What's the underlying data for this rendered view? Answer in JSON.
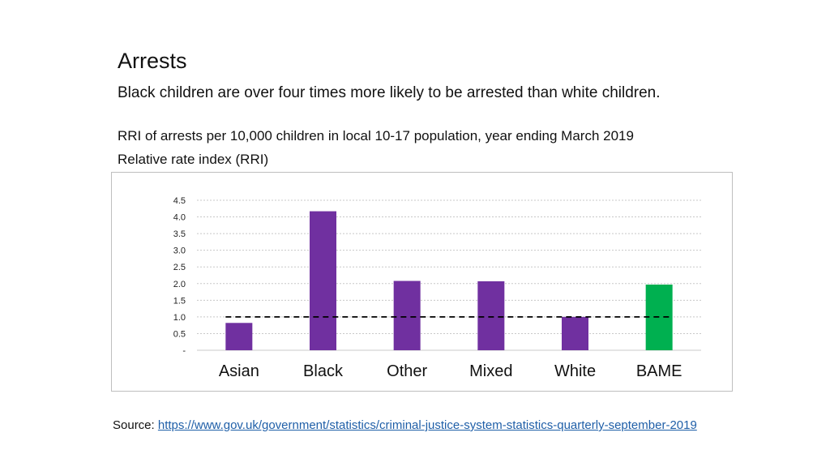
{
  "header": {
    "title": "Arrests",
    "subtitle": "Black children are over four times more likely to be arrested than white children."
  },
  "chart_caption": "RRI of arrests per 10,000 children in local 10-17 population, year ending March 2019",
  "chart_ylabel_caption": "Relative rate index (RRI)",
  "source": {
    "label": "Source: ",
    "link_text": "https://www.gov.uk/government/statistics/criminal-justice-system-statistics-quarterly-september-2019"
  },
  "chart_data": {
    "type": "bar",
    "categories": [
      "Asian",
      "Black",
      "Other",
      "Mixed",
      "White",
      "BAME"
    ],
    "values": [
      0.82,
      4.17,
      2.08,
      2.07,
      1.0,
      1.97
    ],
    "ylim": [
      0,
      4.5
    ],
    "y_ticks": [
      "-",
      "0.5",
      "1.0",
      "1.5",
      "2.0",
      "2.5",
      "3.0",
      "3.5",
      "4.0",
      "4.5"
    ],
    "reference_line": 1.0,
    "grid": true,
    "colors": {
      "bar": "#7030a0",
      "highlight": "#00b050",
      "grid": "#c8c8c8",
      "reference": "#000000"
    },
    "highlight_category": "BAME"
  }
}
